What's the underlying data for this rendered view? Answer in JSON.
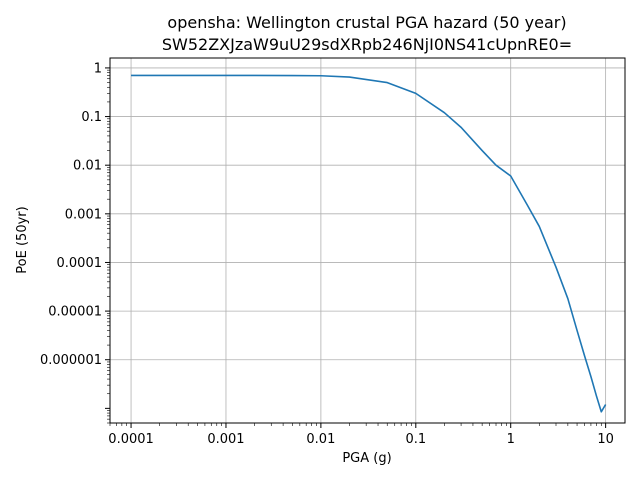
{
  "chart_data": {
    "type": "line",
    "title": "opensha: Wellington crustal PGA hazard (50 year)",
    "subtitle": "SW52ZXJzaW9uU29sdXRpb246NjI0NS41cUpnRE0=",
    "xlabel": "PGA (g)",
    "ylabel": "PoE (50yr)",
    "xscale": "log",
    "yscale": "log",
    "xlim": [
      6e-05,
      16
    ],
    "ylim": [
      5e-08,
      1.6
    ],
    "grid": true,
    "xticks": [
      0.0001,
      0.001,
      0.01,
      0.1,
      1,
      10
    ],
    "xtick_labels": [
      "0.0001",
      "0.001",
      "0.01",
      "0.1",
      "1",
      "10"
    ],
    "yticks": [
      1,
      0.1,
      0.01,
      0.001,
      0.0001,
      1e-05,
      1e-06
    ],
    "ytick_labels": [
      "1",
      "0.1",
      "0.01",
      "0.001",
      "0.0001",
      "0.00001",
      "0.000001"
    ],
    "series": [
      {
        "color": "#1f77b4",
        "x": [
          0.0001,
          0.001,
          0.005,
          0.01,
          0.02,
          0.05,
          0.1,
          0.2,
          0.3,
          0.5,
          0.7,
          1,
          1.5,
          2,
          3,
          4,
          5,
          6,
          7,
          8,
          9,
          10
        ],
        "y": [
          0.7,
          0.7,
          0.698,
          0.69,
          0.65,
          0.5,
          0.3,
          0.12,
          0.06,
          0.02,
          0.01,
          0.006,
          0.0015,
          0.00055,
          8e-05,
          1.8e-05,
          4e-06,
          1.2e-06,
          4.5e-07,
          1.8e-07,
          8.5e-08,
          1.2e-07
        ]
      }
    ]
  }
}
